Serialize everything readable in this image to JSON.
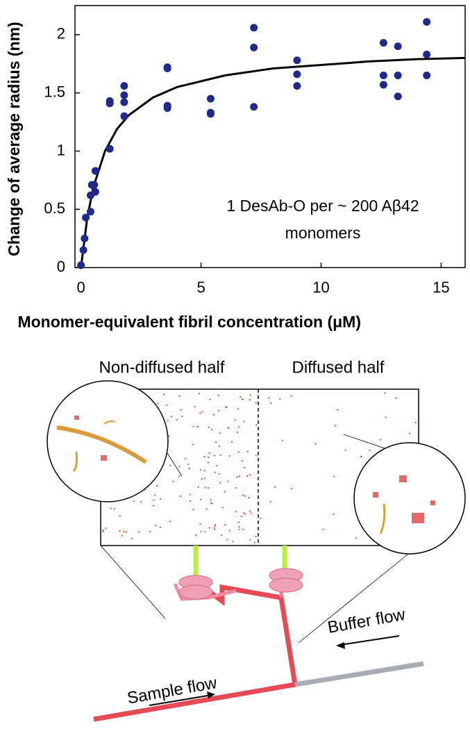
{
  "chart_data": {
    "type": "scatter",
    "xlabel": "Monomer-equivalent fibril concentration (μM)",
    "ylabel": "Change of average radius (nm)",
    "annotation": [
      "1 DesAb-O per ~ 200 Aβ42",
      "monomers"
    ],
    "color": "#1f2a8c",
    "x": [
      0,
      0.1,
      0.15,
      0.2,
      0.4,
      0.4,
      0.45,
      0.55,
      0.6,
      0.6,
      1.2,
      1.2,
      1.2,
      1.8,
      1.8,
      1.8,
      1.8,
      3.6,
      3.6,
      3.6,
      3.6,
      5.4,
      5.4,
      5.4,
      7.2,
      7.2,
      7.2,
      9,
      9,
      9,
      12.6,
      12.6,
      12.6,
      13.2,
      13.2,
      13.2,
      14.4,
      14.4,
      14.4
    ],
    "y": [
      0.02,
      0.15,
      0.25,
      0.43,
      0.48,
      0.62,
      0.71,
      0.71,
      0.65,
      0.83,
      1.02,
      1.41,
      1.43,
      1.3,
      1.42,
      1.48,
      1.56,
      1.37,
      1.39,
      1.71,
      1.72,
      1.32,
      1.33,
      1.45,
      1.38,
      1.89,
      2.06,
      1.56,
      1.66,
      1.78,
      1.57,
      1.65,
      1.93,
      1.47,
      1.65,
      1.9,
      1.65,
      1.83,
      2.11
    ],
    "fit": {
      "color": "#000000",
      "x": [
        0,
        0.25,
        0.5,
        1,
        1.5,
        2,
        3,
        4,
        6,
        8,
        10,
        12,
        14,
        16
      ],
      "y": [
        0,
        0.41,
        0.68,
        1.0,
        1.19,
        1.31,
        1.46,
        1.55,
        1.65,
        1.71,
        1.74,
        1.77,
        1.79,
        1.8
      ]
    },
    "xlim": [
      -0.25,
      16
    ],
    "ylim": [
      0,
      2.25
    ],
    "xticks": [
      0,
      5,
      10,
      15
    ],
    "yticks": [
      0,
      0.5,
      1,
      1.5,
      2
    ]
  },
  "diagram": {
    "left_label": "Non-diffused half",
    "right_label": "Diffused half",
    "sample_flow": "Sample flow",
    "buffer_flow": "Buffer flow"
  }
}
